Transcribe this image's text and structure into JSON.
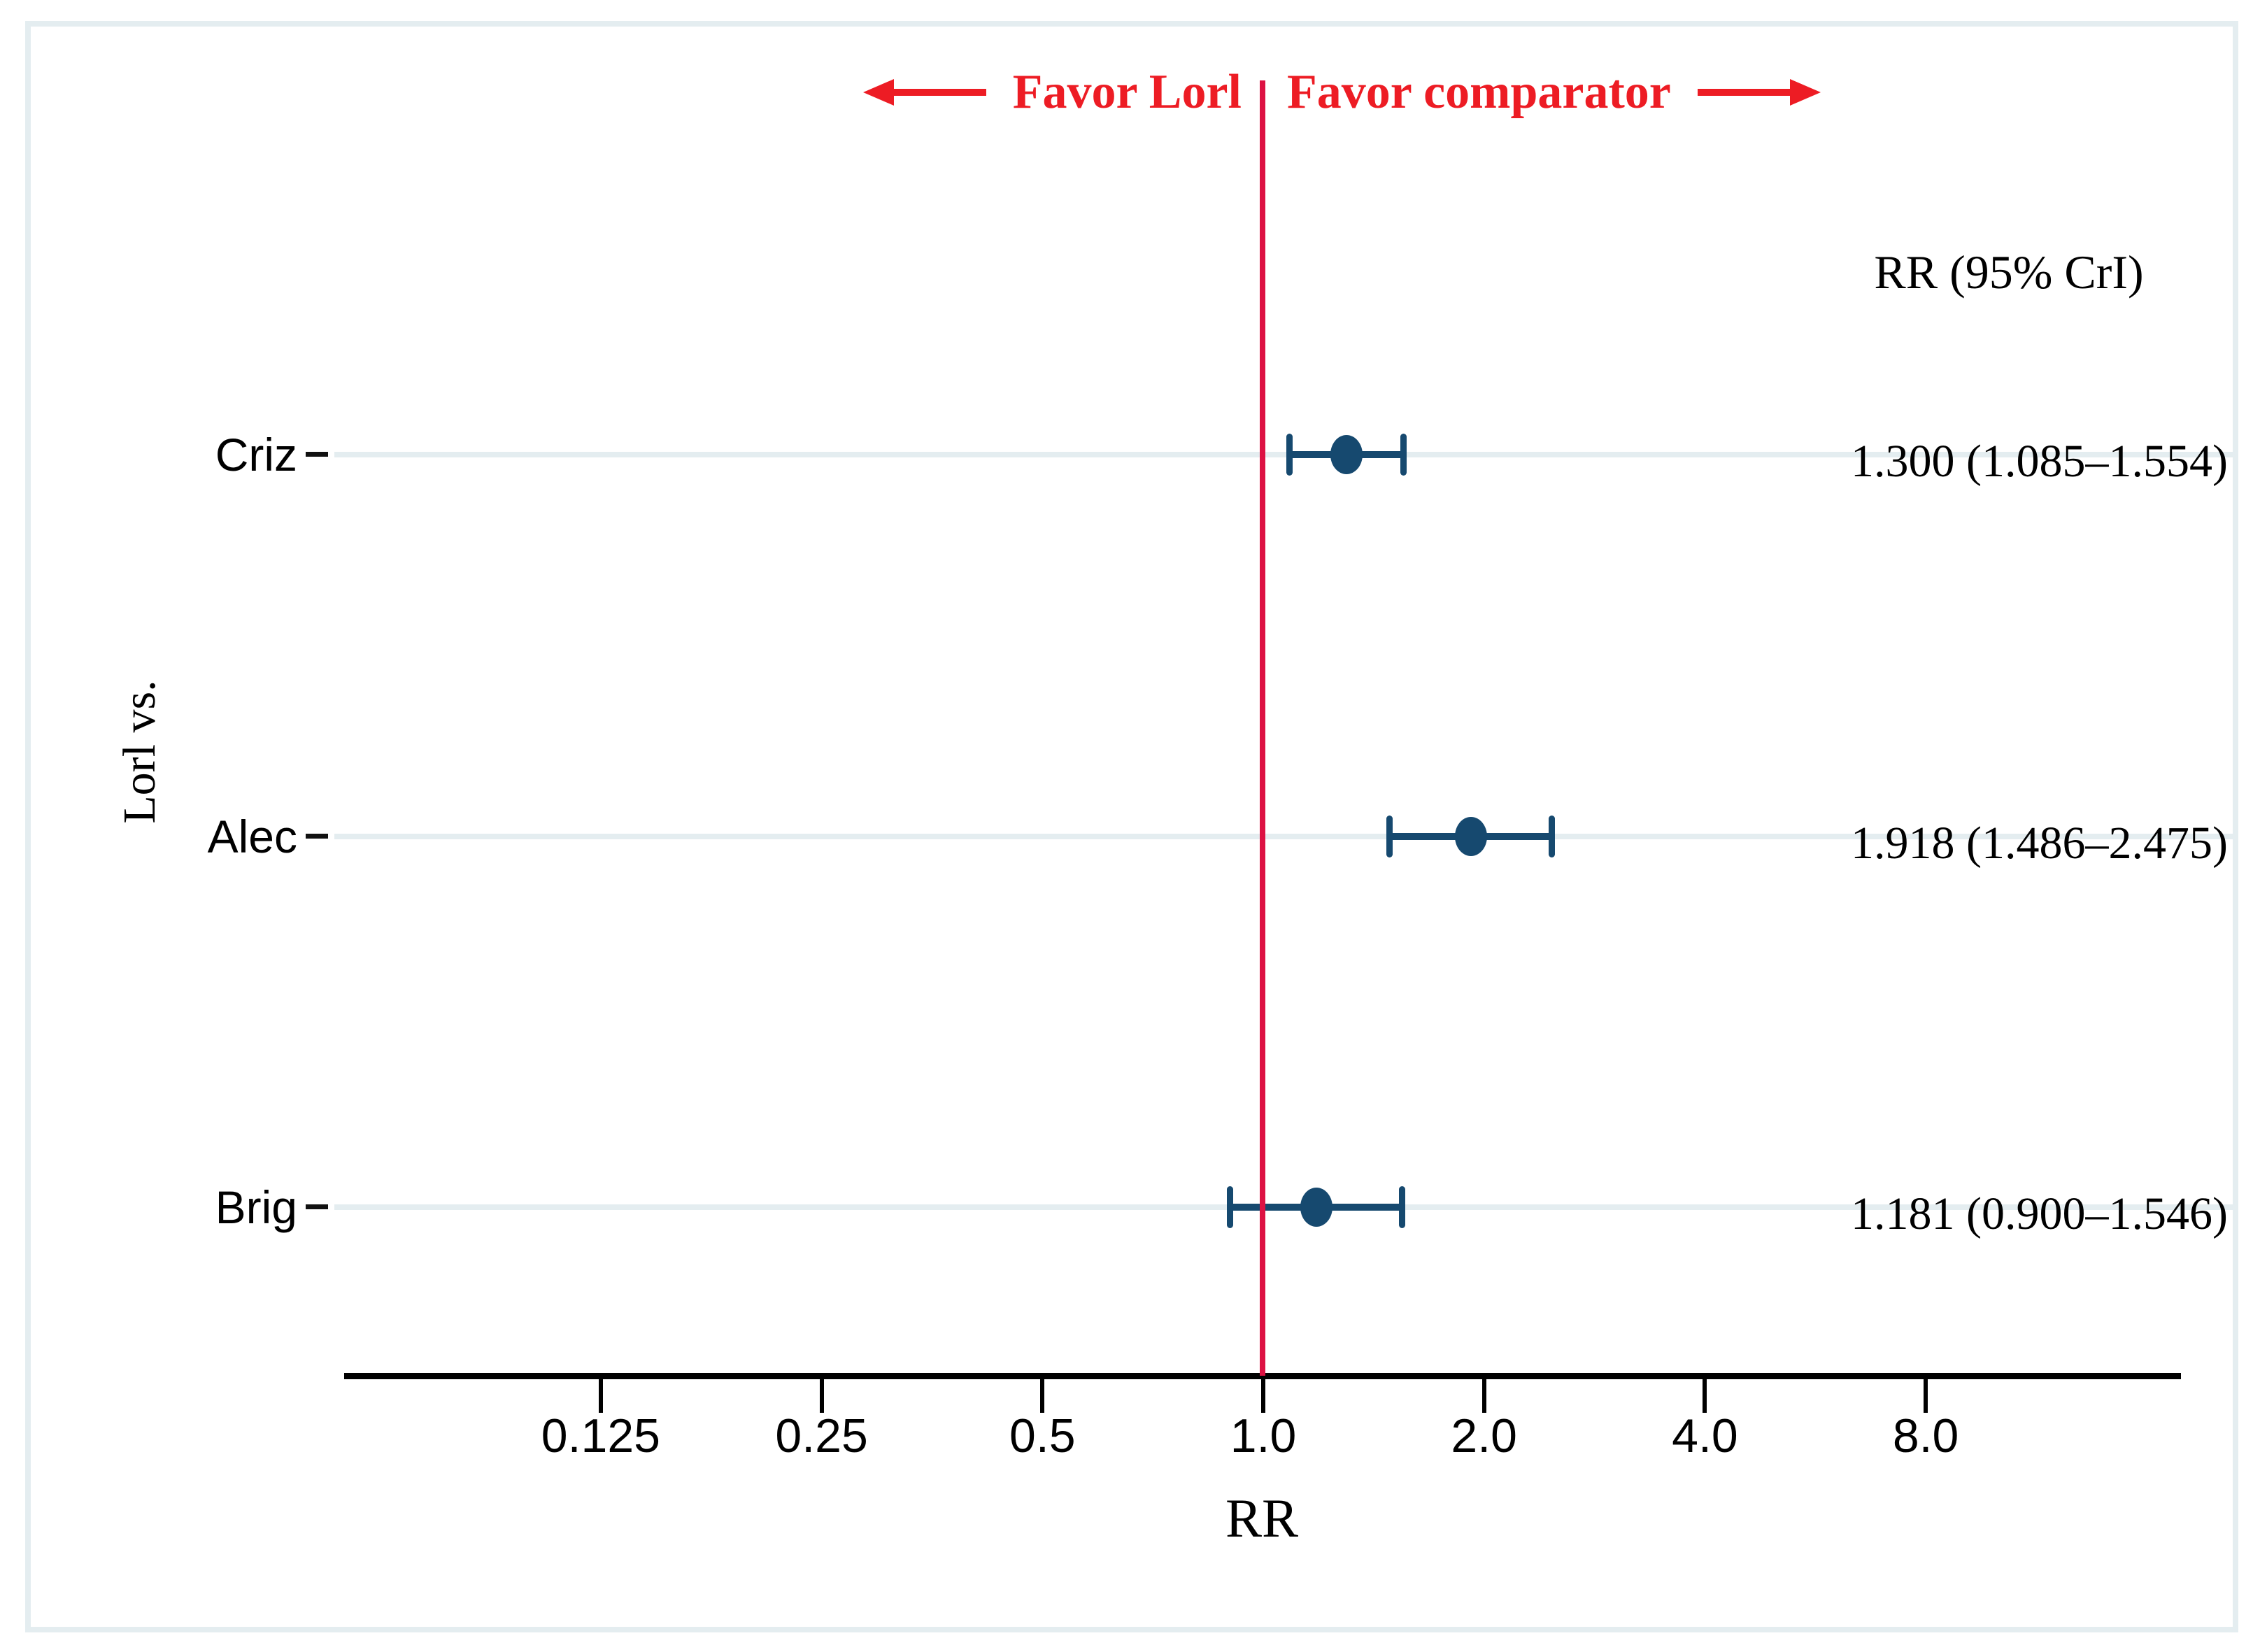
{
  "figure": {
    "annotation": {
      "left_label": "Favor Lorl",
      "right_label": "Favor comparator"
    },
    "column_header": "RR (95% CrI)"
  },
  "chart_data": {
    "type": "scatter",
    "variant": "forest-plot",
    "xlabel": "RR",
    "ylabel": "Lorl vs.",
    "x_scale": "log2",
    "x_tick_labels": [
      "0.125",
      "0.25",
      "0.5",
      "1.0",
      "2.0",
      "4.0",
      "8.0"
    ],
    "x_tick_values": [
      0.125,
      0.25,
      0.5,
      1.0,
      2.0,
      4.0,
      8.0
    ],
    "xlim": [
      0.0625,
      16
    ],
    "reference_line_x": 1.0,
    "grid": "horizontal",
    "legend_position": "none",
    "rows": [
      {
        "label": "Criz",
        "rr": 1.3,
        "ci_low": 1.085,
        "ci_high": 1.554,
        "display": "1.300 (1.085–1.554)"
      },
      {
        "label": "Alec",
        "rr": 1.918,
        "ci_low": 1.486,
        "ci_high": 2.475,
        "display": "1.918 (1.486–2.475)"
      },
      {
        "label": "Brig",
        "rr": 1.181,
        "ci_low": 0.9,
        "ci_high": 1.546,
        "display": "1.181 (0.900–1.546)"
      }
    ],
    "colors": {
      "marker": "#16496f",
      "reference_line": "#dd1243",
      "annotation_red": "#ed1c24",
      "gridline": "#e4edf0",
      "axis": "#000000"
    }
  }
}
